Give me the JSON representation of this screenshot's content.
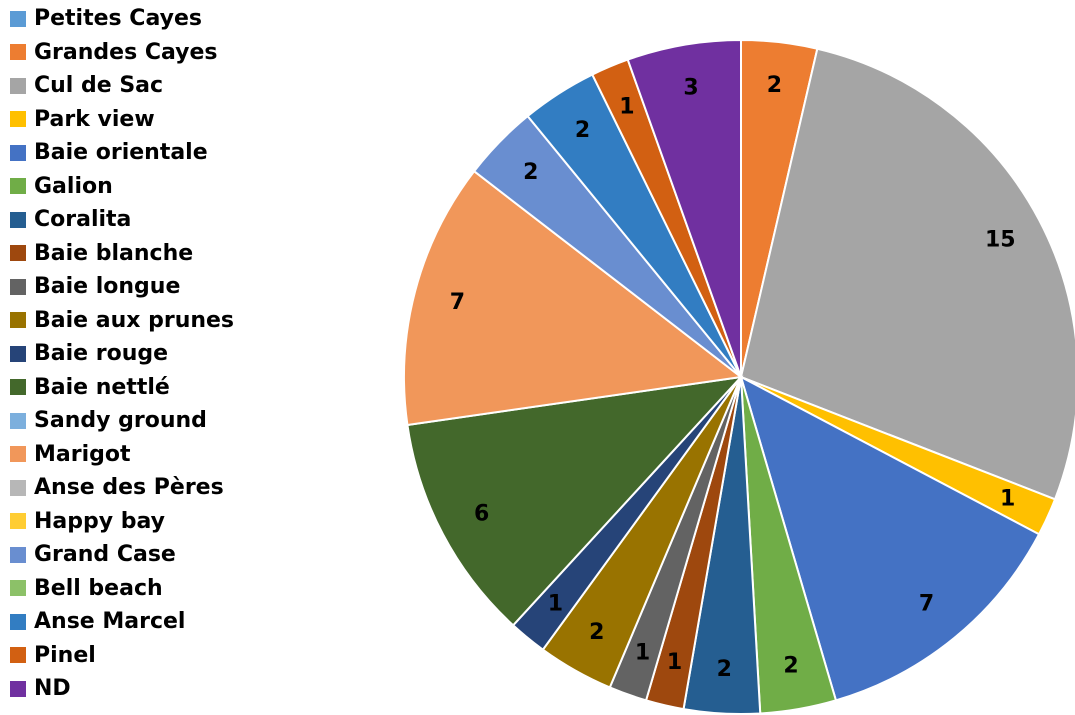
{
  "chart_data": {
    "type": "pie",
    "title": "",
    "slices": [
      {
        "name": "Petites Cayes",
        "value": 0,
        "color": "#5b9bd5"
      },
      {
        "name": "Grandes Cayes",
        "value": 2,
        "color": "#ed7d31"
      },
      {
        "name": "Cul de Sac",
        "value": 15,
        "color": "#a5a5a5"
      },
      {
        "name": "Park view",
        "value": 1,
        "color": "#ffc000"
      },
      {
        "name": "Baie orientale",
        "value": 7,
        "color": "#4472c4"
      },
      {
        "name": "Galion",
        "value": 2,
        "color": "#70ad47"
      },
      {
        "name": "Coralita",
        "value": 2,
        "color": "#255e91"
      },
      {
        "name": "Baie blanche",
        "value": 1,
        "color": "#9e480e"
      },
      {
        "name": "Baie longue",
        "value": 1,
        "color": "#636363"
      },
      {
        "name": "Baie aux prunes",
        "value": 2,
        "color": "#997300"
      },
      {
        "name": "Baie rouge",
        "value": 1,
        "color": "#264478"
      },
      {
        "name": "Baie nettlé",
        "value": 6,
        "color": "#43682b"
      },
      {
        "name": "Sandy ground",
        "value": 0,
        "color": "#7cafdd"
      },
      {
        "name": "Marigot",
        "value": 7,
        "color": "#f1975a"
      },
      {
        "name": "Anse des Pères",
        "value": 0,
        "color": "#b7b7b7"
      },
      {
        "name": "Happy bay",
        "value": 0,
        "color": "#ffcd33"
      },
      {
        "name": "Grand Case",
        "value": 2,
        "color": "#698ed0"
      },
      {
        "name": "Bell beach",
        "value": 0,
        "color": "#8cc168"
      },
      {
        "name": "Anse Marcel",
        "value": 2,
        "color": "#327dc2"
      },
      {
        "name": "Pinel",
        "value": 1,
        "color": "#d26012"
      },
      {
        "name": "ND",
        "value": 3,
        "color": "#7030a0"
      }
    ],
    "legend_position": "left",
    "start_angle_deg": 0,
    "direction": "clockwise"
  }
}
